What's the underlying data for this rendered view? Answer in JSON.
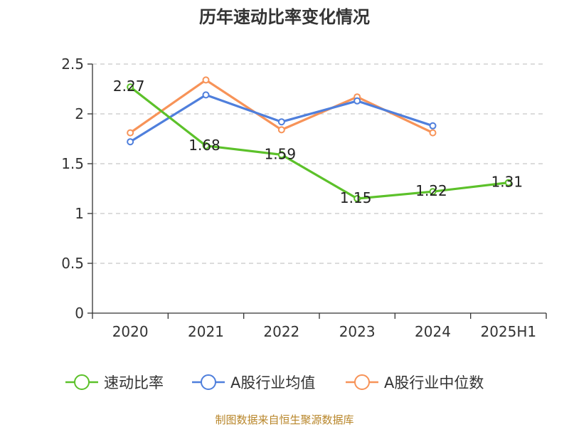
{
  "chart_data": {
    "type": "line",
    "title": "历年速动比率变化情况",
    "categories": [
      "2020",
      "2021",
      "2022",
      "2023",
      "2024",
      "2025H1"
    ],
    "ylim": [
      0,
      2.5
    ],
    "yticks": [
      "0",
      "0.5",
      "1",
      "1.5",
      "2",
      "2.5"
    ],
    "grid": true,
    "legend_position": "bottom",
    "series": [
      {
        "name": "速动比率",
        "color": "#5cc12a",
        "values": [
          2.27,
          1.68,
          1.59,
          1.15,
          1.22,
          1.31
        ],
        "labels": [
          "2.27",
          "1.68",
          "1.59",
          "1.15",
          "1.22",
          "1.31"
        ]
      },
      {
        "name": "A股行业均值",
        "color": "#4f7fdc",
        "values": [
          1.72,
          2.19,
          1.92,
          2.13,
          1.88,
          null
        ]
      },
      {
        "name": "A股行业中位数",
        "color": "#f79358",
        "values": [
          1.81,
          2.34,
          1.84,
          2.17,
          1.81,
          null
        ]
      }
    ],
    "source": "制图数据来自恒生聚源数据库"
  }
}
